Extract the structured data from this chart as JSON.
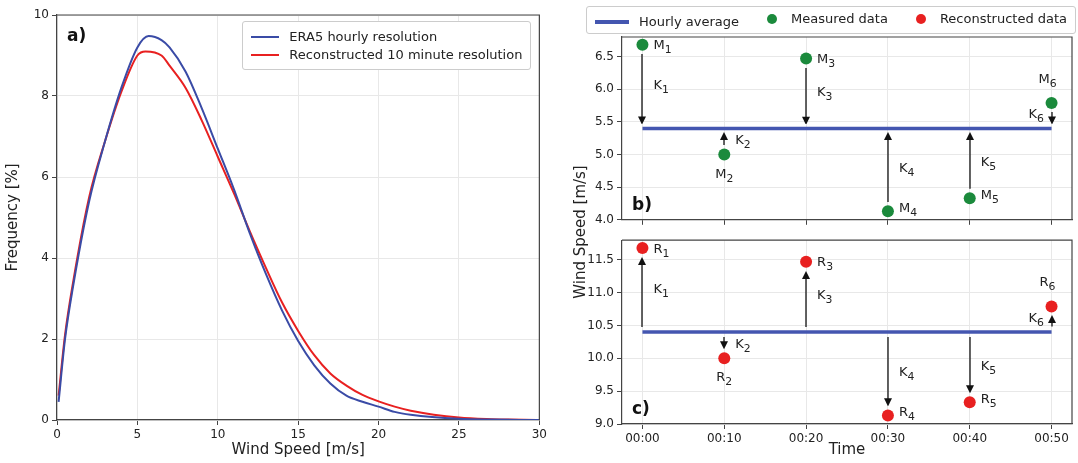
{
  "chart_data": [
    {
      "type": "line",
      "xlabel": "Wind Speed [m/s]",
      "ylabel": "Frequency [%]",
      "xlim": [
        0,
        30
      ],
      "ylim": [
        0,
        10
      ],
      "xticks": [
        0,
        5,
        10,
        15,
        20,
        25,
        30
      ],
      "yticks": [
        0,
        2,
        4,
        6,
        8,
        10
      ],
      "grid": true,
      "legend": "top right",
      "annotations": [
        "a)"
      ],
      "series": [
        {
          "name": "ERA5 hourly resolution",
          "color": "#3a4ba6",
          "x": [
            0.1,
            0.5,
            1,
            2,
            3,
            4,
            5,
            5.7,
            6.5,
            7,
            8,
            9,
            10,
            11,
            12,
            13,
            14,
            15,
            16,
            17,
            18,
            19,
            20,
            21,
            22,
            25,
            27,
            30
          ],
          "values": [
            0.45,
            2.0,
            3.3,
            5.4,
            6.9,
            8.2,
            9.2,
            9.48,
            9.38,
            9.2,
            8.6,
            7.7,
            6.7,
            5.7,
            4.6,
            3.6,
            2.7,
            1.95,
            1.35,
            0.9,
            0.6,
            0.45,
            0.33,
            0.2,
            0.13,
            0.03,
            0.01,
            0
          ]
        },
        {
          "name": "Reconstructed 10 minute resolution",
          "color": "#e82020",
          "x": [
            0.1,
            0.5,
            1,
            2,
            3,
            4,
            5,
            5.5,
            6.5,
            7,
            8,
            9,
            10,
            11,
            12,
            13,
            14,
            15,
            16,
            17,
            18,
            19,
            20,
            21,
            22,
            25,
            27,
            30
          ],
          "values": [
            0.6,
            2.1,
            3.4,
            5.5,
            6.9,
            8.1,
            9.0,
            9.1,
            9.0,
            8.75,
            8.2,
            7.4,
            6.5,
            5.6,
            4.65,
            3.75,
            2.9,
            2.2,
            1.6,
            1.15,
            0.85,
            0.62,
            0.46,
            0.33,
            0.23,
            0.06,
            0.02,
            0
          ]
        }
      ]
    },
    {
      "type": "scatter",
      "categories": [
        "00:00",
        "00:10",
        "00:20",
        "00:30",
        "00:40",
        "00:50"
      ],
      "ylabel": "Wind Speed [m/s]",
      "ylim": [
        4.0,
        6.8
      ],
      "yticks": [
        {
          "value": 4,
          "label": "4.0"
        },
        {
          "value": 4.5,
          "label": "4.5"
        },
        {
          "value": 5,
          "label": "5.0"
        },
        {
          "value": 5.5,
          "label": "5.5"
        },
        {
          "value": 6,
          "label": "6.0"
        },
        {
          "value": 6.5,
          "label": "6.5"
        }
      ],
      "grid": true,
      "legend": "top",
      "tick_labels": "y",
      "series": [
        {
          "name": "Hourly average",
          "type": "line",
          "color": "#4456b0",
          "values": [
            5.4,
            5.4,
            5.4,
            5.4,
            5.4,
            5.4
          ]
        },
        {
          "name": "Measured data",
          "type": "scatter",
          "color": "#1b8a3c",
          "values": [
            6.68,
            5.0,
            6.47,
            4.13,
            4.33,
            5.79
          ]
        }
      ],
      "annotations": [
        "b)",
        {
          "text": "M$_{1}$",
          "x": "00:00",
          "y": 6.68
        },
        {
          "text": "M$_{2}$",
          "x": "00:10",
          "y": 5.0
        },
        {
          "text": "M$_{3}$",
          "x": "00:20",
          "y": 6.47
        },
        {
          "text": "M$_{4}$",
          "x": "00:30",
          "y": 4.13
        },
        {
          "text": "M$_{5}$",
          "x": "00:40",
          "y": 4.33
        },
        {
          "text": "M$_{6}$",
          "x": "00:50",
          "y": 5.79
        },
        {
          "text": "K$_{1}$",
          "x": "00:00",
          "y": 6.68
        },
        {
          "text": "K$_{2}$",
          "x": "00:10",
          "y": 5.0
        },
        {
          "text": "K$_{3}$",
          "x": "00:20",
          "y": 6.47
        },
        {
          "text": "K$_{4}$",
          "x": "00:30",
          "y": 4.13
        },
        {
          "text": "K$_{5}$",
          "x": "00:40",
          "y": 4.33
        },
        {
          "text": "K$_{6}$",
          "x": "00:50",
          "y": 5.79
        }
      ]
    },
    {
      "type": "scatter",
      "categories": [
        "00:00",
        "00:10",
        "00:20",
        "00:30",
        "00:40",
        "00:50"
      ],
      "xlabel": "Time",
      "ylim": [
        9.0,
        11.8
      ],
      "yticks": [
        {
          "value": 9,
          "label": "9.0"
        },
        {
          "value": 9.5,
          "label": "9.5"
        },
        {
          "value": 10,
          "label": "10.0"
        },
        {
          "value": 10.5,
          "label": "10.5"
        },
        {
          "value": 11,
          "label": "11.0"
        },
        {
          "value": 11.5,
          "label": "11.5"
        }
      ],
      "grid": true,
      "legend": "top",
      "series": [
        {
          "type": "line",
          "color": "#4456b0",
          "values": [
            10.4,
            10.4,
            10.4,
            10.4,
            10.4,
            10.4
          ]
        },
        {
          "name": "Reconstructed data",
          "type": "scatter",
          "color": "#e82020",
          "values": [
            11.68,
            10.0,
            11.47,
            9.13,
            9.33,
            10.79
          ]
        }
      ],
      "annotations": [
        "c)",
        {
          "text": "R$_{1}$",
          "x": "00:00",
          "y": 11.68
        },
        {
          "text": "R$_{2}$",
          "x": "00:10",
          "y": 10.0
        },
        {
          "text": "R$_{3}$",
          "x": "00:20",
          "y": 11.47
        },
        {
          "text": "R$_{4}$",
          "x": "00:30",
          "y": 9.13
        },
        {
          "text": "R$_{5}$",
          "x": "00:40",
          "y": 9.33
        },
        {
          "text": "R$_{6}$",
          "x": "00:50",
          "y": 10.79
        },
        {
          "text": "K$_{1}$",
          "x": "00:00",
          "y": 11.68
        },
        {
          "text": "K$_{2}$",
          "x": "00:10",
          "y": 10.0
        },
        {
          "text": "K$_{3}$",
          "x": "00:20",
          "y": 11.47
        },
        {
          "text": "K$_{4}$",
          "x": "00:30",
          "y": 9.13
        },
        {
          "text": "K$_{5}$",
          "x": "00:40",
          "y": 9.33
        },
        {
          "text": "K$_{6}$",
          "x": "00:50",
          "y": 10.79
        }
      ]
    }
  ]
}
